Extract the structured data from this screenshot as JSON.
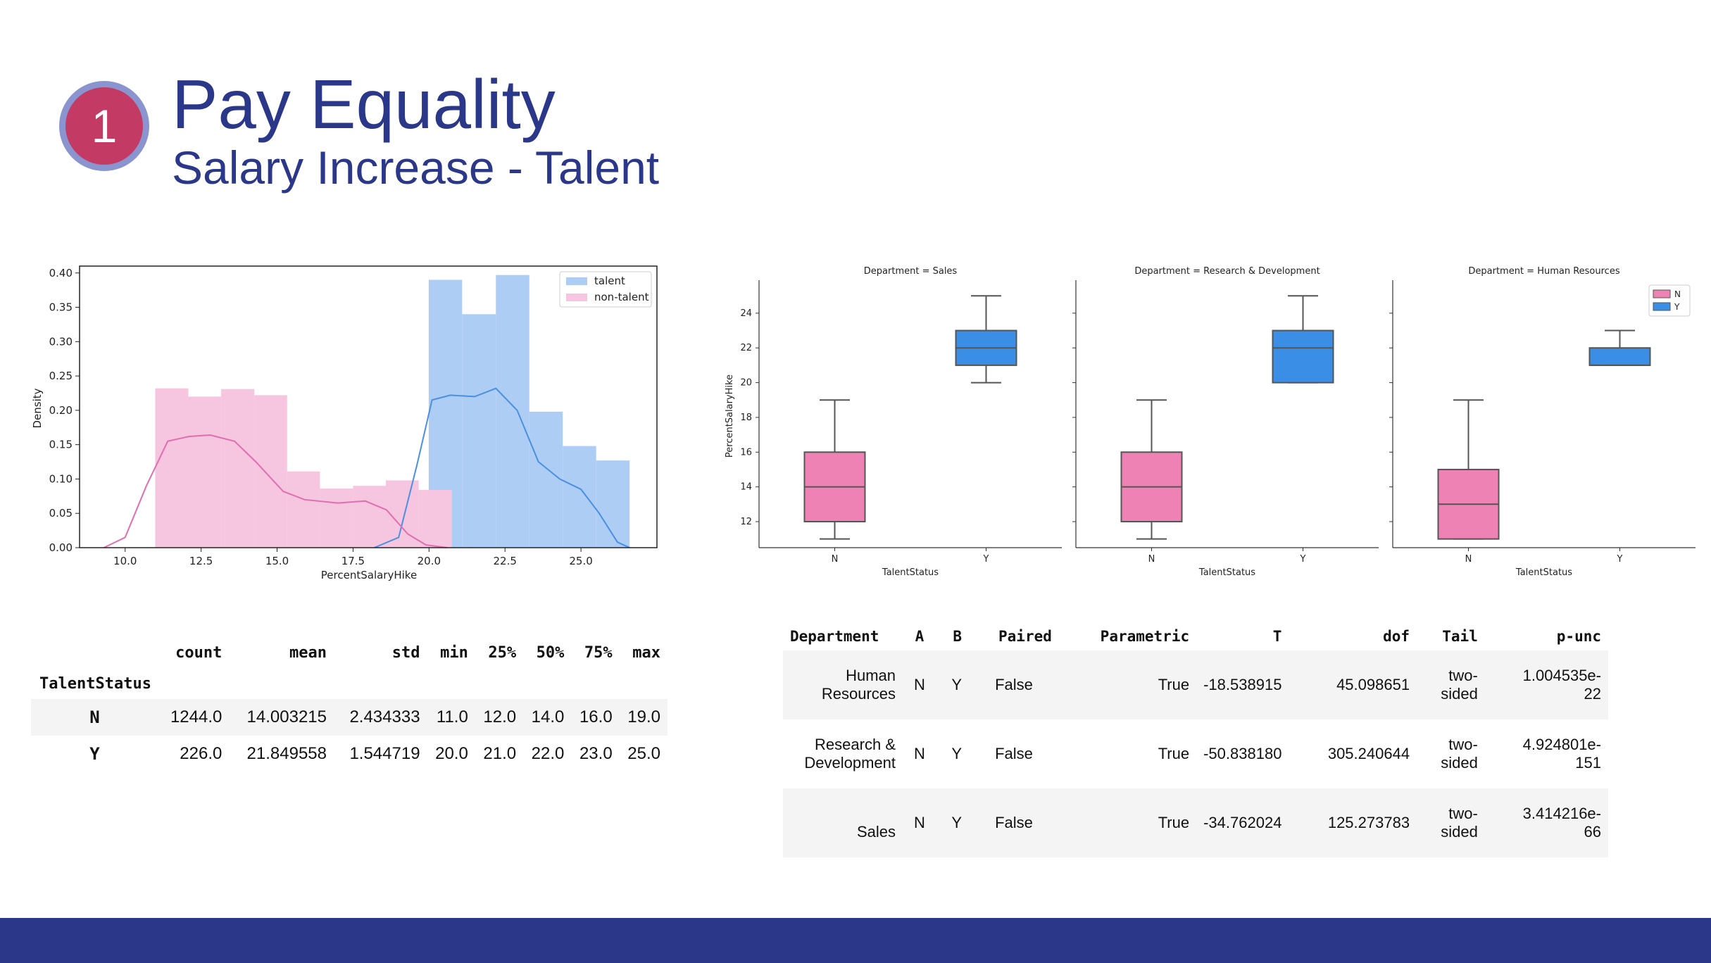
{
  "slide": {
    "badge_number": "1",
    "title": "Pay Equality",
    "subtitle": "Salary Increase - Talent"
  },
  "colors": {
    "title": "#2b3788",
    "footer": "#2b3788",
    "badge_fill": "#c33b64",
    "badge_ring": "#8a95cf",
    "talent": "#4a90e2",
    "non_talent": "#e377c2"
  },
  "chart_data": [
    {
      "type": "bar",
      "chart_kind": "histogram with density curves",
      "xlabel": "PercentSalaryHike",
      "ylabel": "Density",
      "xlim": [
        8.5,
        27.5
      ],
      "ylim": [
        0,
        0.41
      ],
      "x_ticks": [
        "10.0",
        "12.5",
        "15.0",
        "17.5",
        "20.0",
        "22.5",
        "25.0"
      ],
      "y_ticks": [
        "0.00",
        "0.05",
        "0.10",
        "0.15",
        "0.20",
        "0.25",
        "0.30",
        "0.35",
        "0.40"
      ],
      "legend": {
        "position": "top-right",
        "entries": [
          "talent",
          "non-talent"
        ]
      },
      "series": [
        {
          "name": "talent",
          "bins": [
            {
              "x0": 19.99,
              "x1": 21.09,
              "y": 0.39
            },
            {
              "x0": 21.09,
              "x1": 22.2,
              "y": 0.34
            },
            {
              "x0": 22.2,
              "x1": 23.3,
              "y": 0.397
            },
            {
              "x0": 23.3,
              "x1": 24.4,
              "y": 0.198
            },
            {
              "x0": 24.4,
              "x1": 25.5,
              "y": 0.148
            },
            {
              "x0": 25.5,
              "x1": 26.6,
              "y": 0.127
            }
          ],
          "kde": [
            [
              18.2,
              0
            ],
            [
              19.0,
              0.015
            ],
            [
              19.6,
              0.12
            ],
            [
              20.1,
              0.215
            ],
            [
              20.7,
              0.222
            ],
            [
              21.5,
              0.22
            ],
            [
              22.2,
              0.232
            ],
            [
              22.9,
              0.2
            ],
            [
              23.6,
              0.125
            ],
            [
              24.3,
              0.1
            ],
            [
              25.0,
              0.085
            ],
            [
              25.6,
              0.05
            ],
            [
              26.2,
              0.008
            ],
            [
              26.6,
              0
            ]
          ]
        },
        {
          "name": "non-talent",
          "bins": [
            {
              "x0": 10.99,
              "x1": 12.08,
              "y": 0.232
            },
            {
              "x0": 12.08,
              "x1": 13.16,
              "y": 0.22
            },
            {
              "x0": 13.16,
              "x1": 14.25,
              "y": 0.231
            },
            {
              "x0": 14.25,
              "x1": 15.33,
              "y": 0.222
            },
            {
              "x0": 15.33,
              "x1": 16.41,
              "y": 0.111
            },
            {
              "x0": 16.41,
              "x1": 17.5,
              "y": 0.086
            },
            {
              "x0": 17.5,
              "x1": 18.58,
              "y": 0.09
            },
            {
              "x0": 18.58,
              "x1": 19.66,
              "y": 0.098
            },
            {
              "x0": 19.66,
              "x1": 20.75,
              "y": 0.084
            }
          ],
          "kde": [
            [
              9.3,
              0
            ],
            [
              10.0,
              0.015
            ],
            [
              10.7,
              0.09
            ],
            [
              11.4,
              0.155
            ],
            [
              12.1,
              0.162
            ],
            [
              12.8,
              0.164
            ],
            [
              13.6,
              0.155
            ],
            [
              14.3,
              0.125
            ],
            [
              15.2,
              0.082
            ],
            [
              15.9,
              0.07
            ],
            [
              17.0,
              0.065
            ],
            [
              17.9,
              0.068
            ],
            [
              18.6,
              0.055
            ],
            [
              19.3,
              0.02
            ],
            [
              19.9,
              0.004
            ],
            [
              20.6,
              0
            ]
          ]
        }
      ]
    },
    {
      "type": "box",
      "chart_kind": "grouped boxplots by department",
      "ylabel": "PercentSalaryHike",
      "xlabel": "TalentStatus",
      "ylim": [
        10.5,
        25.9
      ],
      "y_ticks": [
        "12",
        "14",
        "16",
        "18",
        "20",
        "22",
        "24"
      ],
      "legend": {
        "position": "top-right",
        "entries": [
          "N",
          "Y"
        ]
      },
      "panels": [
        {
          "title": "Department = Sales",
          "boxes": [
            {
              "category": "N",
              "min": 11,
              "q1": 12,
              "median": 14,
              "q3": 16,
              "max": 19
            },
            {
              "category": "Y",
              "min": 20,
              "q1": 21,
              "median": 22,
              "q3": 23,
              "max": 25
            }
          ]
        },
        {
          "title": "Department = Research & Development",
          "boxes": [
            {
              "category": "N",
              "min": 11,
              "q1": 12,
              "median": 14,
              "q3": 16,
              "max": 19
            },
            {
              "category": "Y",
              "min": 20,
              "q1": 20,
              "median": 22,
              "q3": 23,
              "max": 25
            }
          ]
        },
        {
          "title": "Department = Human Resources",
          "boxes": [
            {
              "category": "N",
              "min": 11,
              "q1": 11,
              "median": 13,
              "q3": 15,
              "max": 19
            },
            {
              "category": "Y",
              "min": 21,
              "q1": 21,
              "median": 21,
              "q3": 22,
              "max": 23
            }
          ]
        }
      ]
    }
  ],
  "describe_table": {
    "columns": [
      "count",
      "mean",
      "std",
      "min",
      "25%",
      "50%",
      "75%",
      "max"
    ],
    "index_name": "TalentStatus",
    "rows": [
      {
        "label": "N",
        "values": [
          "1244.0",
          "14.003215",
          "2.434333",
          "11.0",
          "12.0",
          "14.0",
          "16.0",
          "19.0"
        ]
      },
      {
        "label": "Y",
        "values": [
          "226.0",
          "21.849558",
          "1.544719",
          "20.0",
          "21.0",
          "22.0",
          "23.0",
          "25.0"
        ]
      }
    ]
  },
  "ttest_table": {
    "columns": [
      "Department",
      "A",
      "B",
      "Paired",
      "Parametric",
      "T",
      "dof",
      "Tail",
      "p-unc"
    ],
    "rows": [
      {
        "dept_line1": "Human",
        "dept_line2": "Resources",
        "A": "N",
        "B": "Y",
        "paired": "False",
        "parametric": "True",
        "T": "-18.538915",
        "dof": "45.098651",
        "tail_line1": "two-",
        "tail_line2": "sided",
        "p_line1": "1.004535e-",
        "p_line2": "22"
      },
      {
        "dept_line1": "Research &",
        "dept_line2": "Development",
        "A": "N",
        "B": "Y",
        "paired": "False",
        "parametric": "True",
        "T": "-50.838180",
        "dof": "305.240644",
        "tail_line1": "two-",
        "tail_line2": "sided",
        "p_line1": "4.924801e-",
        "p_line2": "151"
      },
      {
        "dept_line1": "",
        "dept_line2": "Sales",
        "A": "N",
        "B": "Y",
        "paired": "False",
        "parametric": "True",
        "T": "-34.762024",
        "dof": "125.273783",
        "tail_line1": "two-",
        "tail_line2": "sided",
        "p_line1": "3.414216e-",
        "p_line2": "66"
      }
    ]
  }
}
